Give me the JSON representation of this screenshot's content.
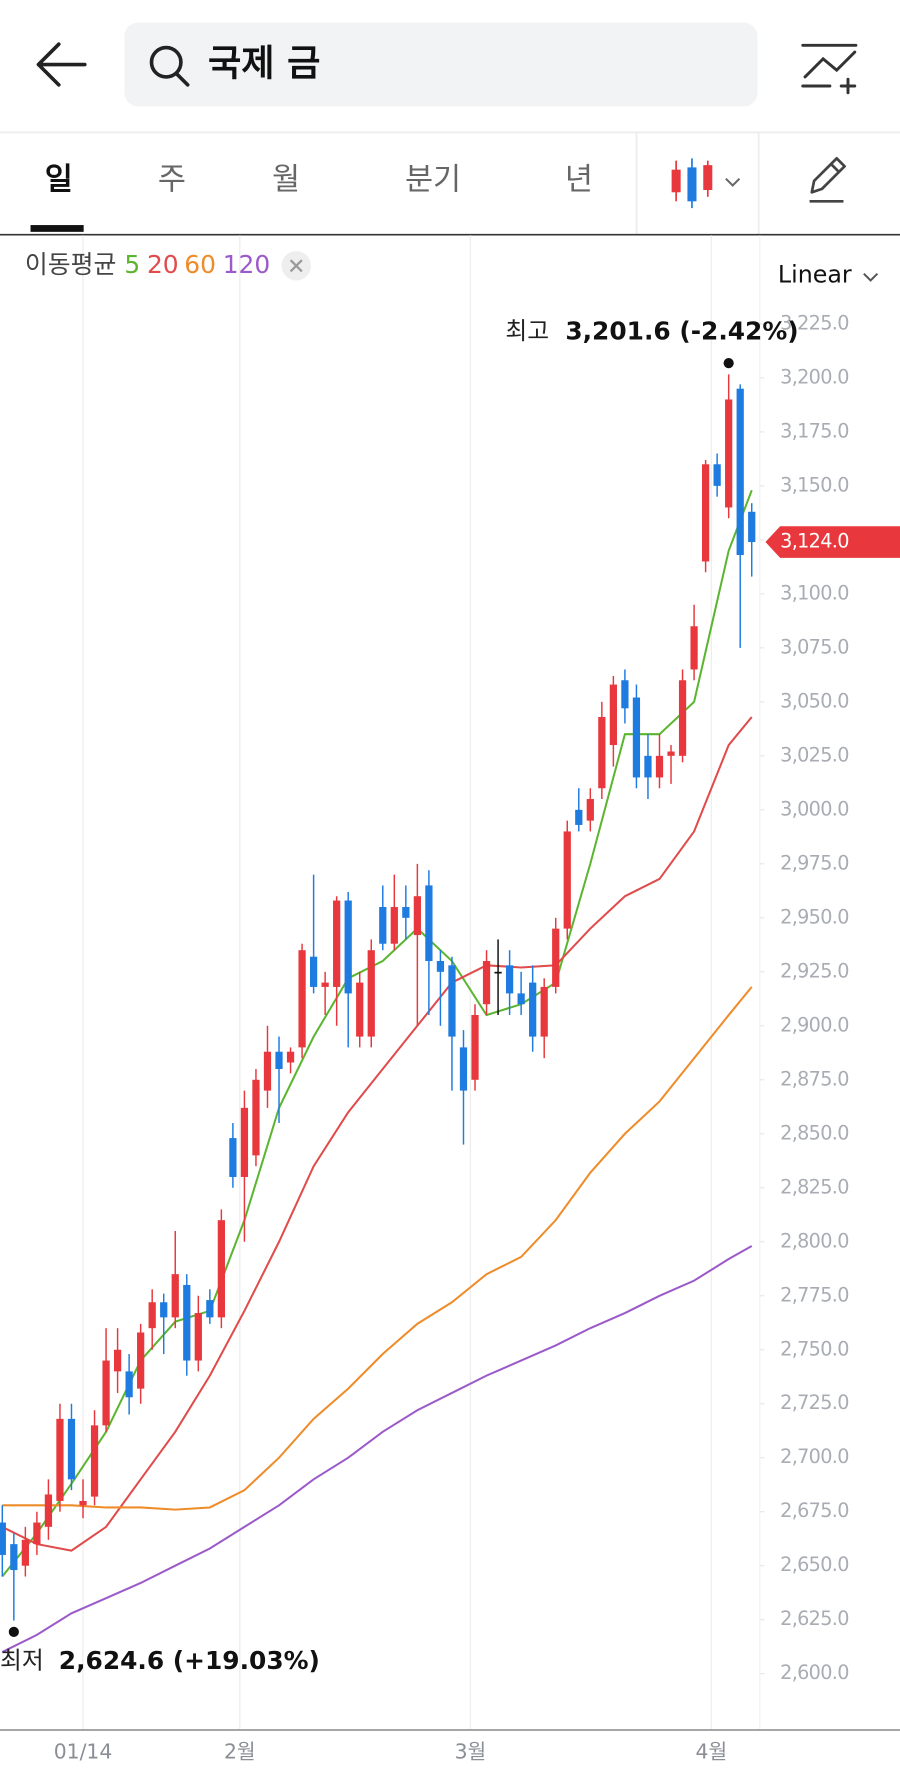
{
  "header": {
    "search": "국제 금"
  },
  "tabs": [
    "일",
    "주",
    "월",
    "분기",
    "년"
  ],
  "chart_data": {
    "type": "candlestick",
    "scale_mode": "Linear",
    "ma_label": "이동평균",
    "up_color": "#e8383d",
    "down_color": "#1e7be0",
    "flat_color": "#111111",
    "open": [
      2670,
      2660,
      2650,
      2660,
      2668,
      2680,
      2718,
      2678,
      2682,
      2715,
      2740,
      2740,
      2732,
      2760,
      2772,
      2765,
      2780,
      2745,
      2773,
      2765,
      2848,
      2830,
      2840,
      2870,
      2888,
      2883,
      2890,
      2932,
      2918,
      2918,
      2958,
      2895,
      2895,
      2955,
      2938,
      2955,
      2942,
      2965,
      2930,
      2928,
      2890,
      2875,
      2910,
      2925,
      2928,
      2915,
      2920,
      2895,
      2918,
      2945,
      3000,
      2995,
      3010,
      3030,
      3060,
      3052,
      3025,
      3015,
      3025,
      3025,
      3065,
      3115,
      3160,
      3140,
      3195,
      3138
    ],
    "high": [
      2678,
      2665,
      2668,
      2675,
      2690,
      2725,
      2725,
      2690,
      2722,
      2760,
      2760,
      2748,
      2762,
      2778,
      2776,
      2805,
      2785,
      2775,
      2778,
      2815,
      2855,
      2870,
      2880,
      2900,
      2895,
      2890,
      2938,
      2970,
      2925,
      2960,
      2962,
      2925,
      2940,
      2965,
      2970,
      2965,
      2975,
      2972,
      2935,
      2932,
      2898,
      2910,
      2935,
      2940,
      2935,
      2925,
      2928,
      2922,
      2950,
      2995,
      3010,
      3010,
      3050,
      3062,
      3065,
      3058,
      3035,
      3035,
      3030,
      3065,
      3095,
      3162,
      3165,
      3201.6,
      3197,
      3142
    ],
    "low": [
      2645,
      2624.6,
      2645,
      2655,
      2662,
      2675,
      2685,
      2672,
      2678,
      2712,
      2730,
      2720,
      2725,
      2750,
      2748,
      2760,
      2738,
      2740,
      2762,
      2760,
      2825,
      2800,
      2835,
      2862,
      2855,
      2878,
      2885,
      2915,
      2905,
      2900,
      2890,
      2890,
      2890,
      2935,
      2935,
      2940,
      2900,
      2905,
      2900,
      2870,
      2845,
      2870,
      2905,
      2905,
      2905,
      2905,
      2888,
      2885,
      2915,
      2940,
      2990,
      2990,
      3005,
      3020,
      3040,
      3010,
      3005,
      3010,
      3012,
      3022,
      3060,
      3110,
      3145,
      3135,
      3075,
      3108
    ],
    "close": [
      2655,
      2648,
      2662,
      2670,
      2683,
      2718,
      2690,
      2680,
      2715,
      2745,
      2750,
      2728,
      2758,
      2772,
      2765,
      2785,
      2745,
      2767,
      2765,
      2810,
      2830,
      2862,
      2875,
      2888,
      2880,
      2888,
      2935,
      2918,
      2920,
      2958,
      2915,
      2920,
      2935,
      2938,
      2955,
      2950,
      2960,
      2930,
      2925,
      2895,
      2870,
      2905,
      2930,
      2925,
      2915,
      2910,
      2895,
      2918,
      2945,
      2990,
      2993,
      3005,
      3043,
      3058,
      3047,
      3015,
      3015,
      3025,
      3027,
      3060,
      3085,
      3160,
      3150,
      3190,
      3118,
      3124
    ],
    "ma_x": [
      0,
      3,
      6,
      9,
      12,
      15,
      18,
      21,
      24,
      27,
      30,
      33,
      36,
      39,
      42,
      45,
      48,
      51,
      54,
      57,
      60,
      63,
      65
    ],
    "series": [
      {
        "name": "5",
        "color": "#5cb531",
        "values": [
          2645,
          2665,
          2688,
          2712,
          2745,
          2763,
          2768,
          2810,
          2862,
          2895,
          2922,
          2930,
          2945,
          2930,
          2905,
          2910,
          2920,
          2975,
          3035,
          3035,
          3050,
          3120,
          3148
        ]
      },
      {
        "name": "20",
        "color": "#e04b4b",
        "values": [
          2668,
          2660,
          2657,
          2668,
          2690,
          2712,
          2738,
          2768,
          2800,
          2835,
          2860,
          2880,
          2900,
          2920,
          2928,
          2927,
          2928,
          2945,
          2960,
          2968,
          2990,
          3030,
          3043
        ]
      },
      {
        "name": "60",
        "color": "#ef8c2a",
        "values": [
          2678,
          2678,
          2678,
          2677,
          2677,
          2676,
          2677,
          2685,
          2700,
          2718,
          2732,
          2748,
          2762,
          2772,
          2785,
          2793,
          2810,
          2832,
          2850,
          2865,
          2885,
          2905,
          2918
        ]
      },
      {
        "name": "120",
        "color": "#9b59c9",
        "values": [
          2610,
          2618,
          2628,
          2635,
          2642,
          2650,
          2658,
          2668,
          2678,
          2690,
          2700,
          2712,
          2722,
          2730,
          2738,
          2745,
          2752,
          2760,
          2767,
          2775,
          2782,
          2792,
          2798
        ]
      }
    ],
    "xlim": [
      -0.2,
      65.7
    ],
    "xticks": [
      {
        "value": 7,
        "label": "01/14"
      },
      {
        "value": 20.6,
        "label": "2월"
      },
      {
        "value": 40.6,
        "label": "3월"
      },
      {
        "value": 61.5,
        "label": "4월"
      }
    ],
    "ylim": [
      2575,
      3265
    ],
    "yticks": [
      {
        "value": 2600,
        "label": "2,600.0"
      },
      {
        "value": 2625,
        "label": "2,625.0"
      },
      {
        "value": 2650,
        "label": "2,650.0"
      },
      {
        "value": 2675,
        "label": "2,675.0"
      },
      {
        "value": 2700,
        "label": "2,700.0"
      },
      {
        "value": 2725,
        "label": "2,725.0"
      },
      {
        "value": 2750,
        "label": "2,750.0"
      },
      {
        "value": 2775,
        "label": "2,775.0"
      },
      {
        "value": 2800,
        "label": "2,800.0"
      },
      {
        "value": 2825,
        "label": "2,825.0"
      },
      {
        "value": 2850,
        "label": "2,850.0"
      },
      {
        "value": 2875,
        "label": "2,875.0"
      },
      {
        "value": 2900,
        "label": "2,900.0"
      },
      {
        "value": 2925,
        "label": "2,925.0"
      },
      {
        "value": 2950,
        "label": "2,950.0"
      },
      {
        "value": 2975,
        "label": "2,975.0"
      },
      {
        "value": 3000,
        "label": "3,000.0"
      },
      {
        "value": 3025,
        "label": "3,025.0"
      },
      {
        "value": 3050,
        "label": "3,050.0"
      },
      {
        "value": 3075,
        "label": "3,075.0"
      },
      {
        "value": 3100,
        "label": "3,100.0"
      },
      {
        "value": 3125,
        "label": "3,125.0"
      },
      {
        "value": 3150,
        "label": "3,150.0"
      },
      {
        "value": 3175,
        "label": "3,175.0"
      },
      {
        "value": 3200,
        "label": "3,200.0"
      },
      {
        "value": 3225,
        "label": "3,225.0"
      }
    ],
    "price_tag": {
      "value": 3124,
      "label": "3,124.0"
    },
    "high_note": {
      "label": "최고",
      "index": 63,
      "value": 3201.6,
      "value_label": "3,201.6 (-2.42%)"
    },
    "low_note": {
      "label": "최저",
      "index": 1,
      "value": 2624.6,
      "value_label": "2,624.6 (+19.03%)"
    }
  }
}
